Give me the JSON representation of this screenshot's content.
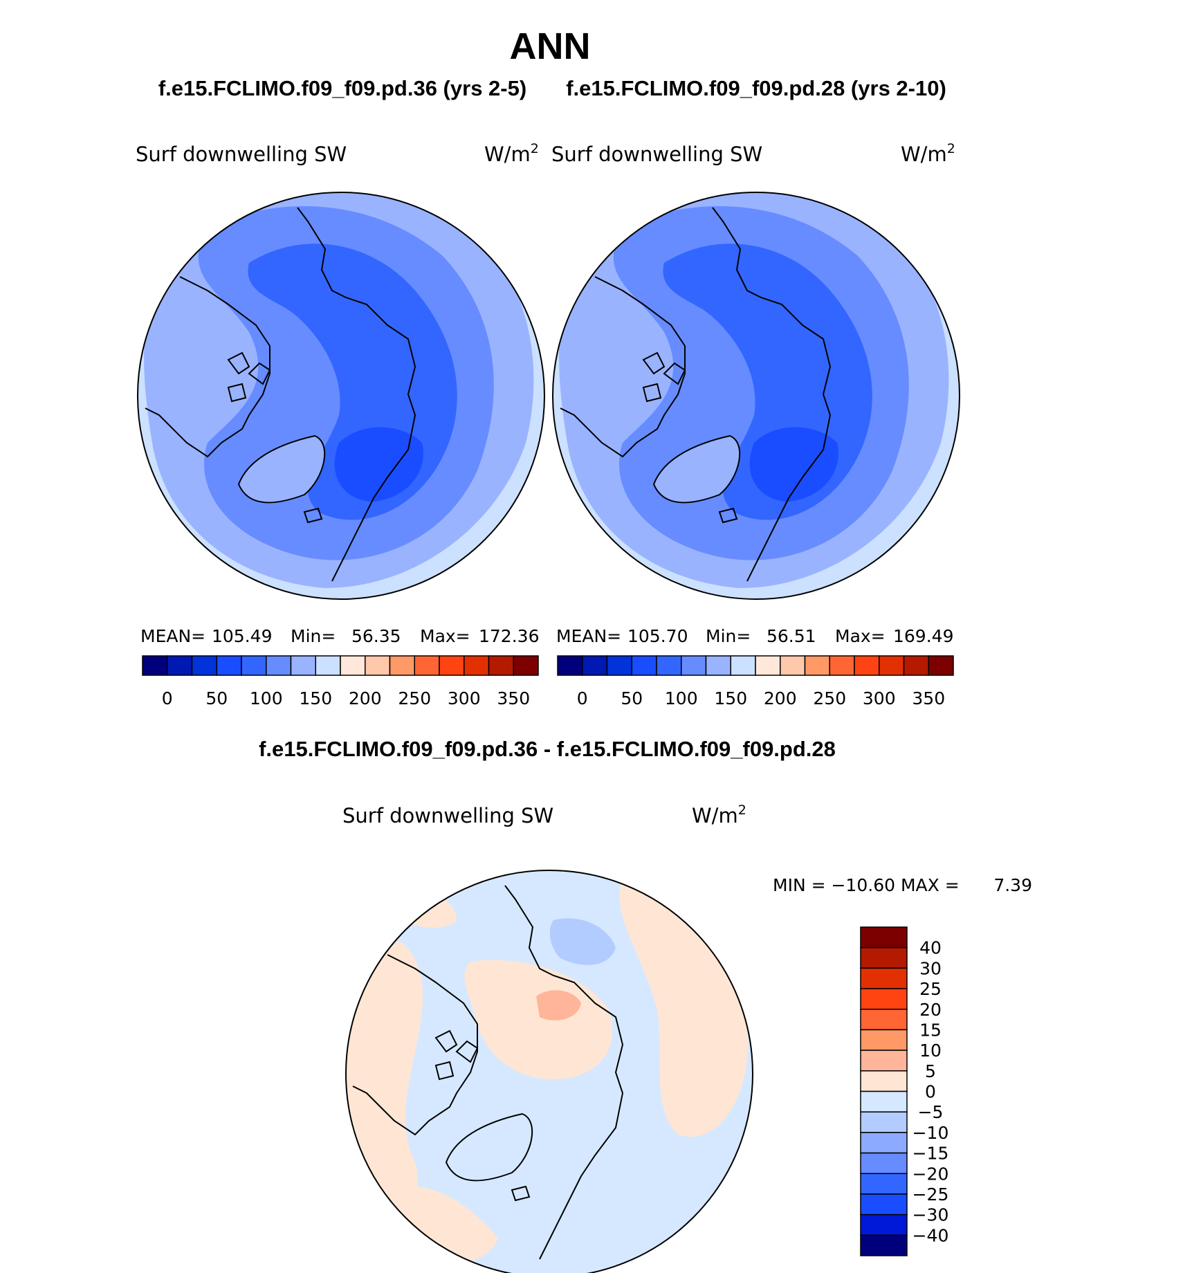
{
  "title": "ANN",
  "subtitle_left": "f.e15.FCLIMO.f09_f09.pd.36 (yrs 2-5)",
  "subtitle_right": "f.e15.FCLIMO.f09_f09.pd.28 (yrs 2-10)",
  "diff_title": "f.e15.FCLIMO.f09_f09.pd.36 - f.e15.FCLIMO.f09_f09.pd.28",
  "panels": [
    {
      "field": "Surf downwelling SW",
      "units": "W/m",
      "units_sup": "2",
      "stats": {
        "mean_label": "MEAN=",
        "mean": "105.49",
        "min_label": "Min=",
        "min": "56.35",
        "max_label": "Max=",
        "max": "172.36"
      }
    },
    {
      "field": "Surf downwelling SW",
      "units": "W/m",
      "units_sup": "2",
      "stats": {
        "mean_label": "MEAN=",
        "mean": "105.70",
        "min_label": "Min=",
        "min": "56.51",
        "max_label": "Max=",
        "max": "169.49"
      }
    }
  ],
  "diff_panel": {
    "field": "Surf downwelling SW",
    "units": "W/m",
    "units_sup": "2",
    "minmax_text": "MIN = −10.60 MAX =",
    "max_value": "7.39"
  },
  "abs_colorbar": {
    "colors": [
      "#00007c",
      "#0019b3",
      "#0033d9",
      "#1a4dff",
      "#3366ff",
      "#668cff",
      "#99b3ff",
      "#cce0ff",
      "#ffe8d9",
      "#ffc8aa",
      "#ff9966",
      "#ff6633",
      "#ff4411",
      "#e33000",
      "#b31a00",
      "#7c0000"
    ],
    "labels": [
      "0",
      "50",
      "100",
      "150",
      "200",
      "250",
      "300",
      "350"
    ]
  },
  "diff_colorbar": {
    "colors": [
      "#7c0000",
      "#b31a00",
      "#e33000",
      "#ff4411",
      "#ff6633",
      "#ff9966",
      "#ffb599",
      "#ffe6d4",
      "#d6e8ff",
      "#b3ccff",
      "#8caaff",
      "#668cff",
      "#3366ff",
      "#1a4dff",
      "#0019d9",
      "#00007c"
    ],
    "labels": [
      "40",
      "30",
      "25",
      "20",
      "15",
      "10",
      "5",
      "0",
      "−5",
      "−10",
      "−15",
      "−20",
      "−25",
      "−30",
      "−40"
    ]
  },
  "map_colors": {
    "abs_outer": "#cce0ff",
    "abs_c1": "#99b3ff",
    "abs_c2": "#668cff",
    "abs_c3": "#3366ff",
    "abs_c4": "#1a4dff",
    "diff_base": "#d6e8ff",
    "diff_warm": "#ffe6d4",
    "diff_warm2": "#ffb599",
    "diff_cool": "#b3ccff",
    "coast": "#000000"
  }
}
